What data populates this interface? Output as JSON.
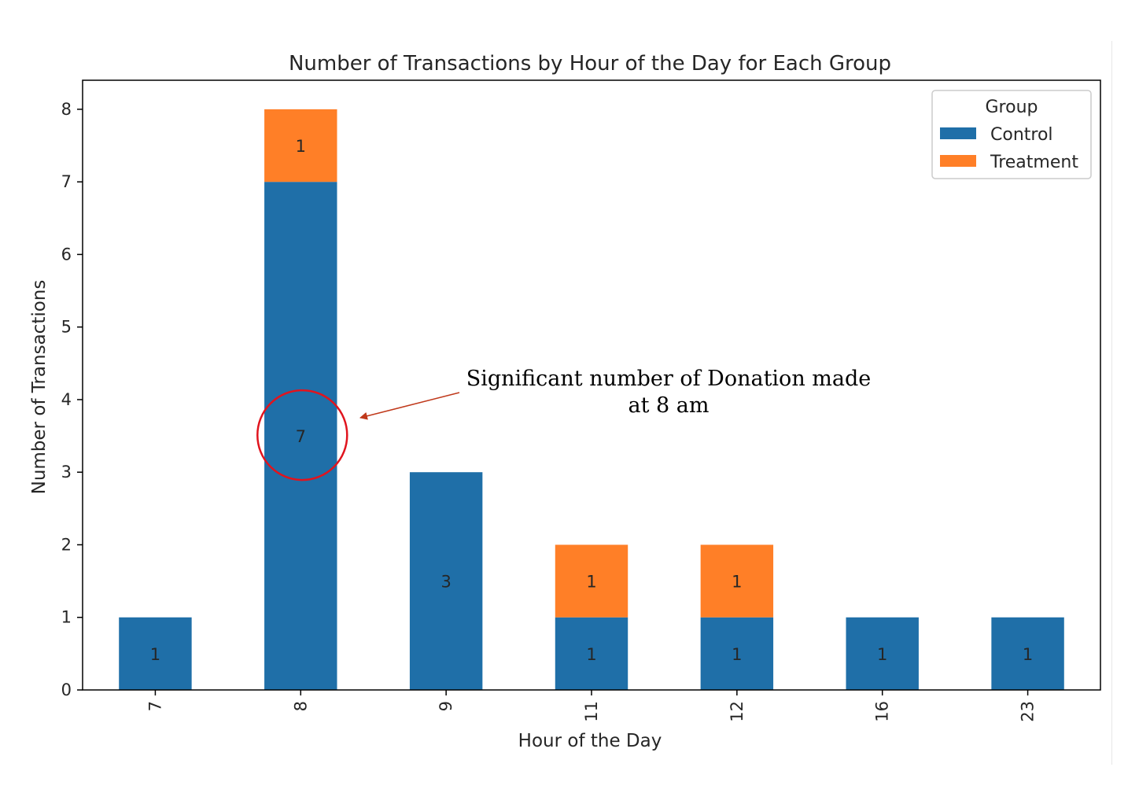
{
  "chart_data": {
    "type": "bar",
    "stacked": true,
    "title": "Number of Transactions by Hour of the Day for Each Group",
    "xlabel": "Hour of the Day",
    "ylabel": "Number of Transactions",
    "categories": [
      "7",
      "8",
      "9",
      "11",
      "12",
      "16",
      "23"
    ],
    "series": [
      {
        "name": "Control",
        "values": [
          1,
          7,
          3,
          1,
          1,
          1,
          1
        ]
      },
      {
        "name": "Treatment",
        "values": [
          0,
          1,
          0,
          1,
          1,
          0,
          0
        ]
      }
    ],
    "ylim": [
      0,
      8.4
    ],
    "yticks": [
      0,
      1,
      2,
      3,
      4,
      5,
      6,
      7,
      8
    ],
    "legend": {
      "title": "Group",
      "placement": "top-right"
    },
    "grid": false,
    "colors": {
      "Control": "#1f6fa8",
      "Treatment": "#ff7f27"
    },
    "annotation": {
      "lines": [
        "Significant number of Donation made",
        "at 8 am"
      ],
      "target_category": "8",
      "target_value": 3.5,
      "circle_color": "#e0141e",
      "arrow_color": "#c0391b"
    }
  }
}
